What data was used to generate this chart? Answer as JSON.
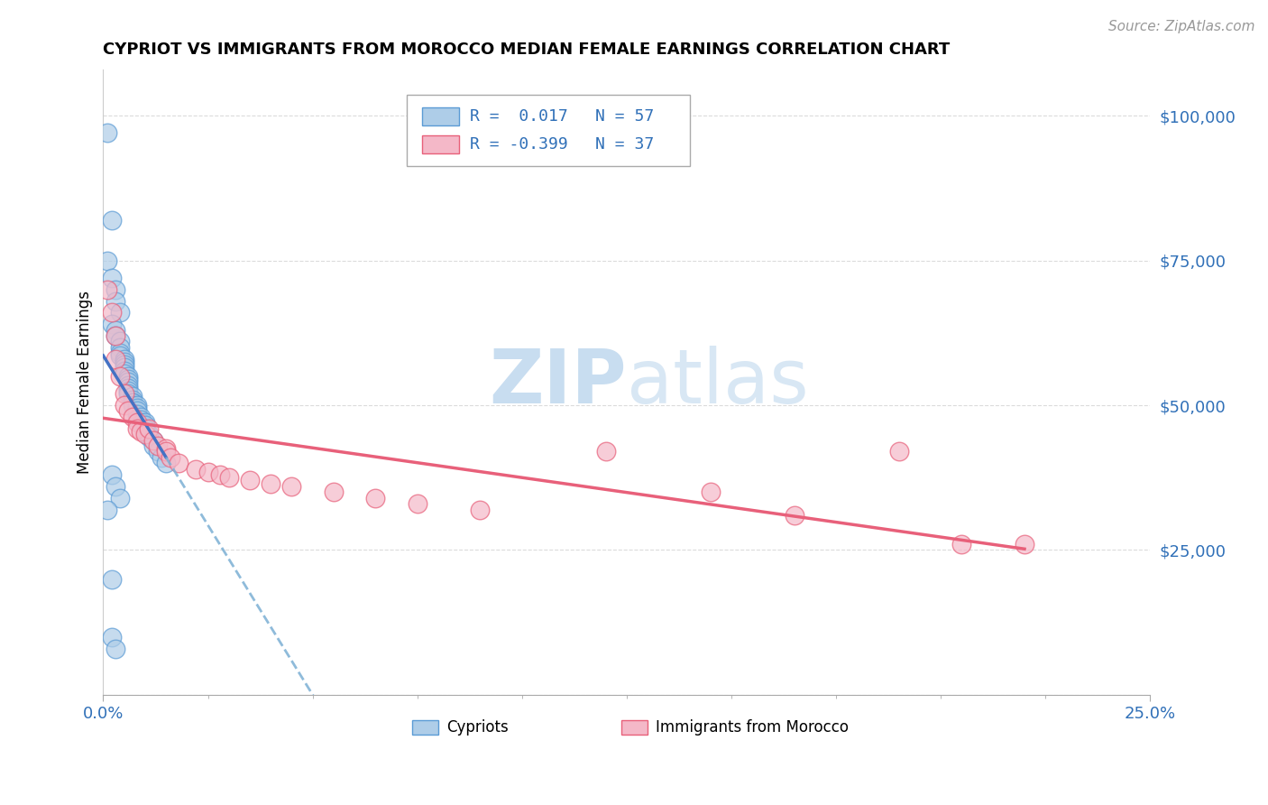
{
  "title": "CYPRIOT VS IMMIGRANTS FROM MOROCCO MEDIAN FEMALE EARNINGS CORRELATION CHART",
  "source": "Source: ZipAtlas.com",
  "ylabel": "Median Female Earnings",
  "xlim": [
    0.0,
    0.25
  ],
  "ylim": [
    0,
    108000
  ],
  "yticks": [
    0,
    25000,
    50000,
    75000,
    100000
  ],
  "ytick_labels": [
    "",
    "$25,000",
    "$50,000",
    "$75,000",
    "$100,000"
  ],
  "xtick_labels": [
    "0.0%",
    "25.0%"
  ],
  "xtick_vals": [
    0.0,
    0.25
  ],
  "legend_r1": "R =  0.017",
  "legend_n1": "N = 57",
  "legend_r2": "R = -0.399",
  "legend_n2": "N = 37",
  "color_blue": "#aecde8",
  "color_pink": "#f4b8c8",
  "edge_blue": "#5b9bd5",
  "edge_pink": "#e8607a",
  "line_blue_solid": "#4472c4",
  "line_blue_dash": "#7bafd4",
  "line_pink": "#e8607a",
  "watermark_color": "#ddeeff",
  "cypriot_x": [
    0.001,
    0.002,
    0.001,
    0.002,
    0.003,
    0.003,
    0.004,
    0.002,
    0.003,
    0.003,
    0.004,
    0.004,
    0.004,
    0.004,
    0.005,
    0.005,
    0.005,
    0.005,
    0.005,
    0.005,
    0.006,
    0.006,
    0.006,
    0.006,
    0.006,
    0.006,
    0.006,
    0.007,
    0.007,
    0.007,
    0.007,
    0.007,
    0.008,
    0.008,
    0.008,
    0.008,
    0.009,
    0.009,
    0.009,
    0.01,
    0.01,
    0.01,
    0.01,
    0.011,
    0.011,
    0.012,
    0.012,
    0.013,
    0.014,
    0.015,
    0.002,
    0.003,
    0.004,
    0.001,
    0.002,
    0.002,
    0.003
  ],
  "cypriot_y": [
    97000,
    82000,
    75000,
    72000,
    70000,
    68000,
    66000,
    64000,
    63000,
    62000,
    61000,
    60000,
    59000,
    58500,
    58000,
    57500,
    57000,
    56500,
    56000,
    55500,
    55000,
    54500,
    54000,
    53500,
    53000,
    52500,
    52000,
    51500,
    51000,
    50500,
    50500,
    50000,
    50000,
    49500,
    49000,
    48500,
    48000,
    47500,
    47000,
    47000,
    46500,
    46000,
    45500,
    45000,
    44500,
    44000,
    43000,
    42000,
    41000,
    40000,
    38000,
    36000,
    34000,
    32000,
    20000,
    10000,
    8000
  ],
  "morocco_x": [
    0.001,
    0.002,
    0.003,
    0.003,
    0.004,
    0.005,
    0.005,
    0.006,
    0.007,
    0.008,
    0.008,
    0.009,
    0.01,
    0.011,
    0.012,
    0.013,
    0.015,
    0.015,
    0.016,
    0.018,
    0.022,
    0.025,
    0.028,
    0.03,
    0.035,
    0.04,
    0.045,
    0.055,
    0.065,
    0.075,
    0.09,
    0.12,
    0.145,
    0.165,
    0.19,
    0.205,
    0.22
  ],
  "morocco_y": [
    70000,
    66000,
    62000,
    58000,
    55000,
    52000,
    50000,
    49000,
    48000,
    47000,
    46000,
    45500,
    45000,
    46000,
    44000,
    43000,
    42500,
    42000,
    41000,
    40000,
    39000,
    38500,
    38000,
    37500,
    37000,
    36500,
    36000,
    35000,
    34000,
    33000,
    32000,
    42000,
    35000,
    31000,
    42000,
    26000,
    26000
  ]
}
